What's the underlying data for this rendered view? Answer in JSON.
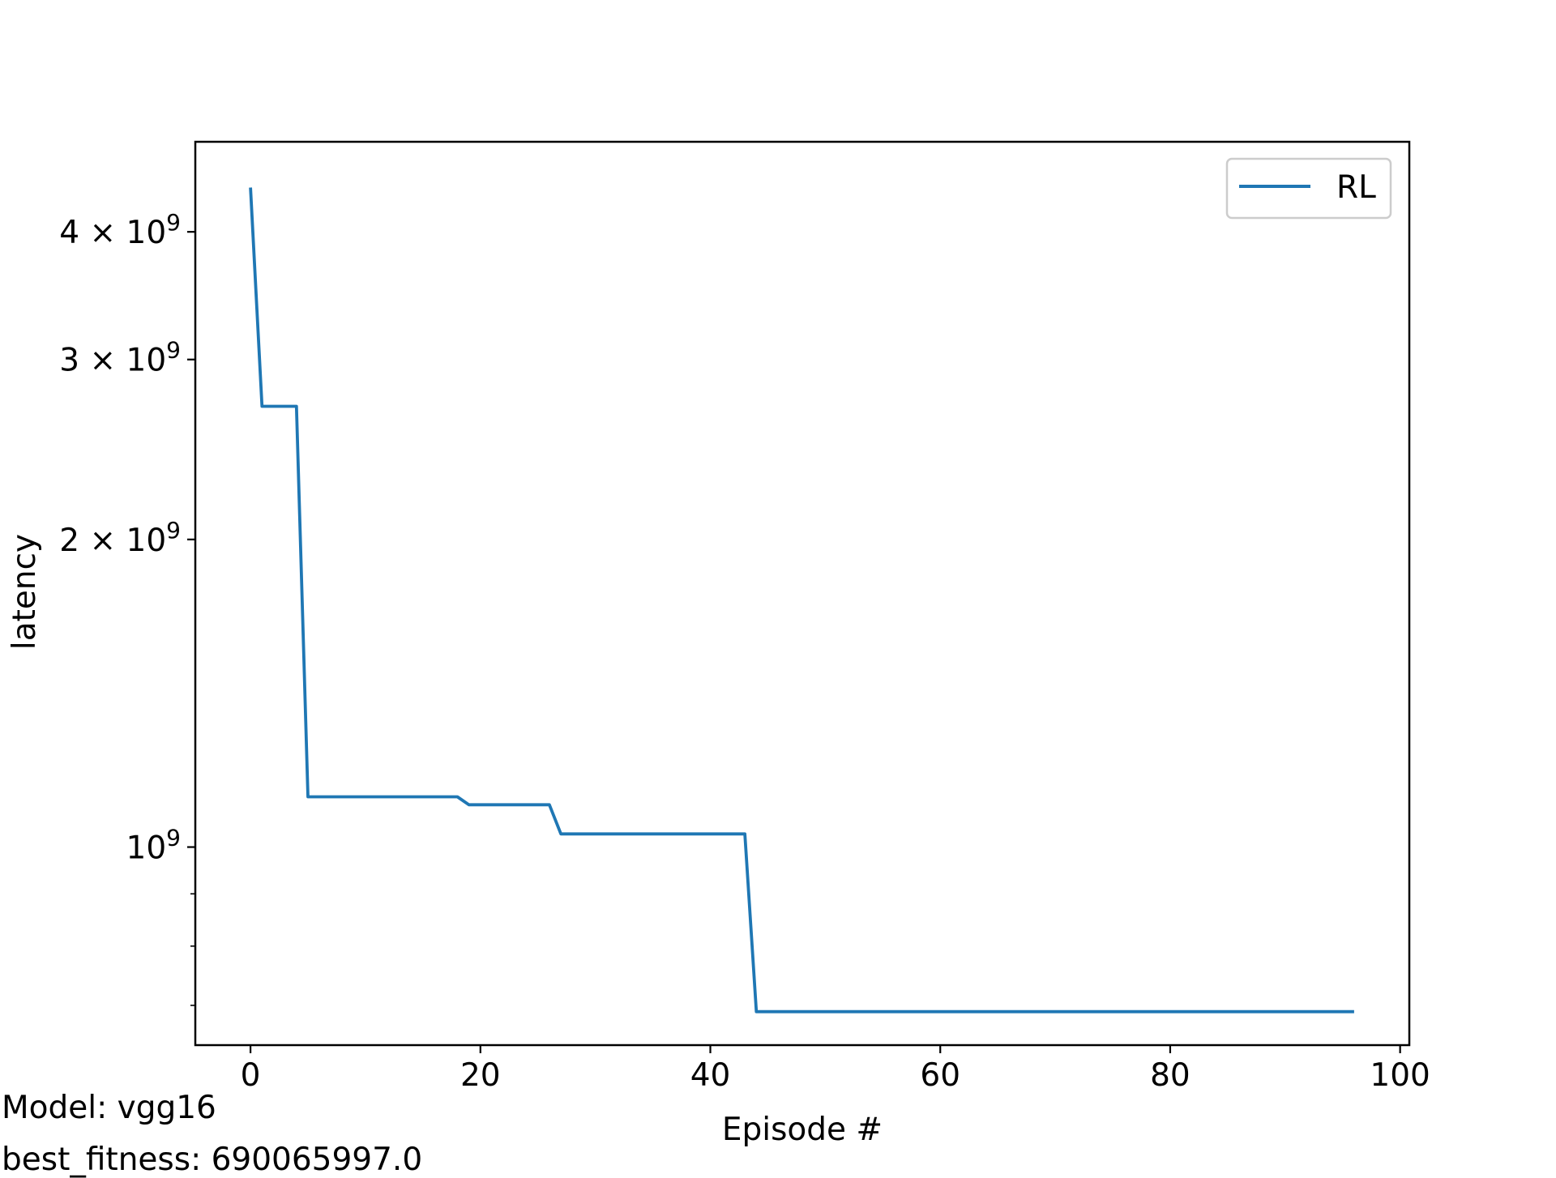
{
  "chart_data": {
    "type": "line",
    "xlabel": "Episode #",
    "ylabel": "latency",
    "yscale": "log",
    "xlim": [
      -4.8,
      100.8
    ],
    "ylim": [
      640000000,
      4900000000
    ],
    "xticks": [
      0,
      20,
      40,
      60,
      80,
      100
    ],
    "yticks": [
      {
        "value": 4000000000,
        "mantissa": "4",
        "base": "10",
        "exp": "9"
      },
      {
        "value": 3000000000,
        "mantissa": "3",
        "base": "10",
        "exp": "9"
      },
      {
        "value": 2000000000,
        "mantissa": "2",
        "base": "10",
        "exp": "9"
      },
      {
        "value": 1000000000,
        "mantissa": "",
        "base": "10",
        "exp": "9"
      }
    ],
    "minor_yticks": [
      700000000,
      800000000,
      900000000
    ],
    "grid": false,
    "legend": {
      "position": "top-right"
    },
    "series": [
      {
        "name": "RL",
        "color": "#1f77b4",
        "x": [
          0,
          1,
          4,
          5,
          18,
          19,
          26,
          27,
          43,
          44,
          96
        ],
        "y": [
          4420000000,
          2700000000,
          2700000000,
          1120000000,
          1120000000,
          1100000000,
          1100000000,
          1030000000,
          1030000000,
          690065997,
          690065997
        ]
      }
    ]
  },
  "notes": {
    "model": "Model: vgg16",
    "fitness": "best_fitness: 690065997.0"
  }
}
